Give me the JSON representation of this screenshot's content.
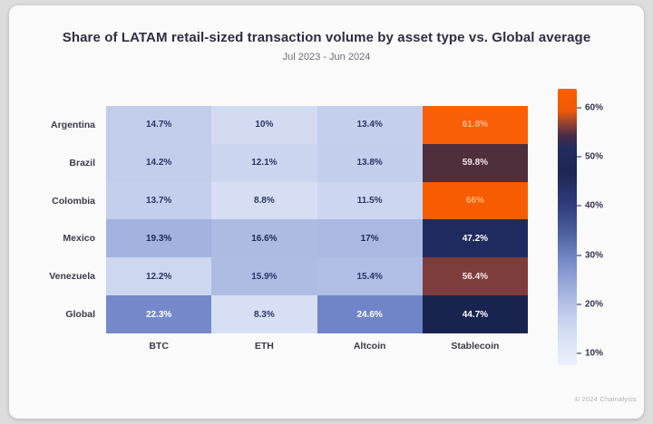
{
  "title": "Share of LATAM retail-sized transaction volume by asset type vs. Global average",
  "subtitle": "Jul 2023 - Jun 2024",
  "watermark": "© 2024 Chainalysis",
  "chart_data": {
    "type": "heatmap",
    "unit": "%",
    "columns": [
      "BTC",
      "ETH",
      "Altcoin",
      "Stablecoin"
    ],
    "rows": [
      "Argentina",
      "Brazil",
      "Colombia",
      "Mexico",
      "Venezuela",
      "Global"
    ],
    "values": [
      [
        14.7,
        10,
        13.4,
        61.8
      ],
      [
        14.2,
        12.1,
        13.8,
        59.8
      ],
      [
        13.7,
        8.8,
        11.5,
        66
      ],
      [
        19.3,
        16.6,
        17,
        47.2
      ],
      [
        12.2,
        15.9,
        15.4,
        56.4
      ],
      [
        22.3,
        8.3,
        24.6,
        44.7
      ]
    ],
    "cell_labels": [
      [
        "14.7%",
        "10%",
        "13.4%",
        "61.8%"
      ],
      [
        "14.2%",
        "12.1%",
        "13.8%",
        "59.8%"
      ],
      [
        "13.7%",
        "8.8%",
        "11.5%",
        "66%"
      ],
      [
        "19.3%",
        "16.6%",
        "17%",
        "47.2%"
      ],
      [
        "12.2%",
        "15.9%",
        "15.4%",
        "56.4%"
      ],
      [
        "22.3%",
        "8.3%",
        "24.6%",
        "44.7%"
      ]
    ],
    "cell_colors": [
      [
        "#c2cdec",
        "#d2dbf2",
        "#c4cfed",
        "#f95f07"
      ],
      [
        "#c2cdec",
        "#cbd5ef",
        "#c3ceec",
        "#4f2e3d"
      ],
      [
        "#c4cfed",
        "#d5def3",
        "#ccd6f0",
        "#f85c00"
      ],
      [
        "#a3b2df",
        "#adbbe3",
        "#abb9e2",
        "#1f2b5e"
      ],
      [
        "#cdd7f0",
        "#aebce4",
        "#b0bde5",
        "#7e3d3d"
      ],
      [
        "#7589ca",
        "#d6dff4",
        "#7085c7",
        "#192350"
      ]
    ],
    "cell_text_colors": [
      [
        "#2a3564",
        "#2a3564",
        "#2a3564",
        "#ffb98e"
      ],
      [
        "#2a3564",
        "#2a3564",
        "#2a3564",
        "#f2e4e8"
      ],
      [
        "#2a3564",
        "#2a3564",
        "#2a3564",
        "#ffb573"
      ],
      [
        "#1e2a55",
        "#1e2a55",
        "#1e2a55",
        "#ffffff"
      ],
      [
        "#2a3564",
        "#2a3564",
        "#2a3564",
        "#f6e8e8"
      ],
      [
        "#ffffff",
        "#2a3564",
        "#ffffff",
        "#ffffff"
      ]
    ],
    "colorbar": {
      "tick_labels": [
        "60%",
        "50%",
        "40%",
        "30%",
        "20%",
        "10%"
      ],
      "tick_values": [
        60,
        50,
        40,
        30,
        20,
        10
      ],
      "gradient_top_to_bottom": [
        {
          "pos": 0,
          "color": "#f95f02"
        },
        {
          "pos": 8,
          "color": "#ef5a07"
        },
        {
          "pos": 11,
          "color": "#b04a26"
        },
        {
          "pos": 14,
          "color": "#7c3b3b"
        },
        {
          "pos": 17,
          "color": "#4a2b47"
        },
        {
          "pos": 21,
          "color": "#252c5e"
        },
        {
          "pos": 30,
          "color": "#1d2654"
        },
        {
          "pos": 42,
          "color": "#2e3d7c"
        },
        {
          "pos": 52,
          "color": "#4c5f9e"
        },
        {
          "pos": 61,
          "color": "#7186c6"
        },
        {
          "pos": 70,
          "color": "#95a6d7"
        },
        {
          "pos": 79,
          "color": "#b8c5e9"
        },
        {
          "pos": 87,
          "color": "#d0daf2"
        },
        {
          "pos": 96,
          "color": "#e4eaf8"
        },
        {
          "pos": 100,
          "color": "#edf1fb"
        }
      ]
    }
  }
}
